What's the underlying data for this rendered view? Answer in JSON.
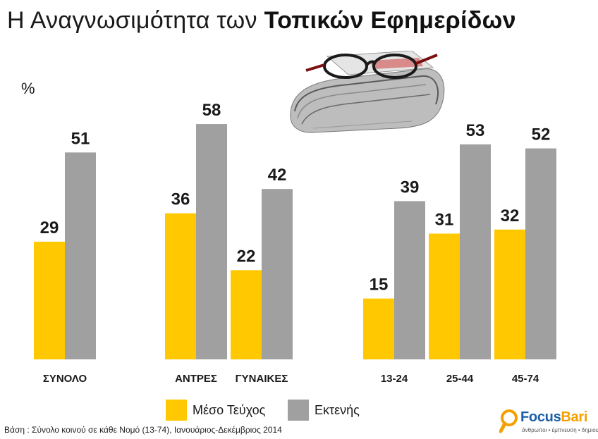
{
  "title": {
    "regular": "Η Αναγνωσιμότητα των",
    "bold": "Τοπικών Εφημερίδων"
  },
  "colors": {
    "series_1": "#FFC800",
    "series_2": "#A0A0A0",
    "text": "#1a1a1a"
  },
  "chart_data": {
    "type": "bar",
    "ylabel": "%",
    "ylim": [
      0,
      66
    ],
    "groups": [
      [
        "ΣΥΝΟΛΟ"
      ],
      [
        "ΑΝΤΡΕΣ",
        "ΓΥΝΑΙΚΕΣ"
      ],
      [
        "13-24",
        "25-44",
        "45-74"
      ]
    ],
    "categories": [
      "ΣΥΝΟΛΟ",
      "ΑΝΤΡΕΣ",
      "ΓΥΝΑΙΚΕΣ",
      "13-24",
      "25-44",
      "45-74"
    ],
    "series": [
      {
        "name": "Μέσο Τεύχος",
        "values": [
          29,
          36,
          22,
          15,
          31,
          32
        ]
      },
      {
        "name": "Εκτενής",
        "values": [
          51,
          58,
          42,
          39,
          53,
          52
        ]
      }
    ],
    "grid": false,
    "legend": "bottom-center"
  },
  "footnote": "Βάση : Σύνολο κοινού σε κάθε Νομό (13-74), Ιανουάριος-Δεκέμβριος 2014",
  "logo": {
    "brand_a": "Focus",
    "brand_b": "Bari",
    "tagline": "άνθρωποι • έμπνευση • δημιουργία"
  },
  "icons": {
    "logo_icon": "magnifier-icon",
    "newspaper_image": "newspaper-with-glasses-icon"
  }
}
